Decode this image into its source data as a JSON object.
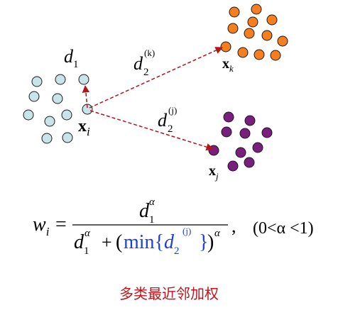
{
  "labels": {
    "d1": {
      "base": "d",
      "sub": "1"
    },
    "dk": {
      "base": "d",
      "sub": "2",
      "sup": "(k)"
    },
    "dj": {
      "base": "d",
      "sub": "2",
      "sup": "(j)"
    },
    "xi": {
      "base": "x",
      "sub": "i"
    },
    "xk": {
      "base": "x",
      "sub": "k"
    },
    "xj": {
      "base": "x",
      "sub": "j"
    }
  },
  "formula": {
    "lhs_base": "w",
    "lhs_sub": "i",
    "equals": "=",
    "num_base": "d",
    "num_sub": "1",
    "num_sup": "α",
    "den_d": "d",
    "den_d_sub": "1",
    "den_d_sup": "α",
    "den_plus": "+",
    "den_open": "(",
    "den_min": "min",
    "den_brace_open": "{",
    "den_min_d": "d",
    "den_min_sub": "2",
    "den_min_sup": "(j)",
    "den_brace_close": "}",
    "den_close": ")",
    "den_close_sup": "α",
    "comma": ",",
    "condition": "(0<α <1)"
  },
  "caption": "多类最近邻加权",
  "colors": {
    "cyan_cluster": "#c8e4e8",
    "orange_cluster": "#f57f1f",
    "purple_cluster": "#7a1f7f",
    "arrow": "#b0141c",
    "caption": "#c0141c",
    "min_text": "#1f3fd8"
  }
}
